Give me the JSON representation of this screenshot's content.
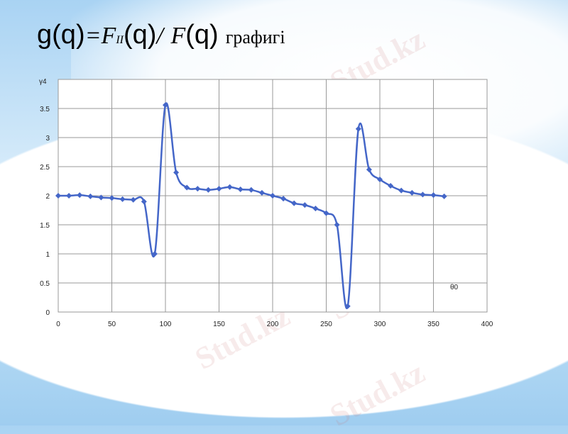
{
  "slide": {
    "title_formula": {
      "g": "g",
      "q": "q",
      "eq": "=",
      "F_main": "F",
      "F_sub": "II",
      "slash": "/",
      "F2": "F"
    },
    "title_word": "графигі",
    "watermark": "Stud.kz"
  },
  "chart_data": {
    "type": "line",
    "title": "",
    "ylabel": "γ4",
    "xlabel": "θ0",
    "xlim": [
      0,
      400
    ],
    "ylim": [
      0,
      4
    ],
    "xticks": [
      0,
      50,
      100,
      150,
      200,
      250,
      300,
      350,
      400
    ],
    "yticks": [
      0,
      0.5,
      1,
      1.5,
      2,
      2.5,
      3,
      3.5
    ],
    "grid": true,
    "smooth": true,
    "marker": "diamond",
    "color": "#4466c8",
    "x": [
      0,
      10,
      20,
      30,
      40,
      50,
      60,
      70,
      80,
      90,
      100,
      110,
      120,
      130,
      140,
      150,
      160,
      170,
      180,
      190,
      200,
      210,
      220,
      230,
      240,
      250,
      260,
      270,
      280,
      290,
      300,
      310,
      320,
      330,
      340,
      350,
      360
    ],
    "values": [
      2.0,
      2.0,
      2.01,
      1.99,
      1.97,
      1.96,
      1.94,
      1.93,
      1.9,
      1.0,
      3.56,
      2.4,
      2.14,
      2.12,
      2.1,
      2.12,
      2.15,
      2.11,
      2.1,
      2.05,
      2.0,
      1.95,
      1.87,
      1.84,
      1.78,
      1.7,
      1.5,
      0.1,
      3.15,
      2.45,
      2.28,
      2.17,
      2.09,
      2.05,
      2.02,
      2.01,
      1.99
    ]
  }
}
